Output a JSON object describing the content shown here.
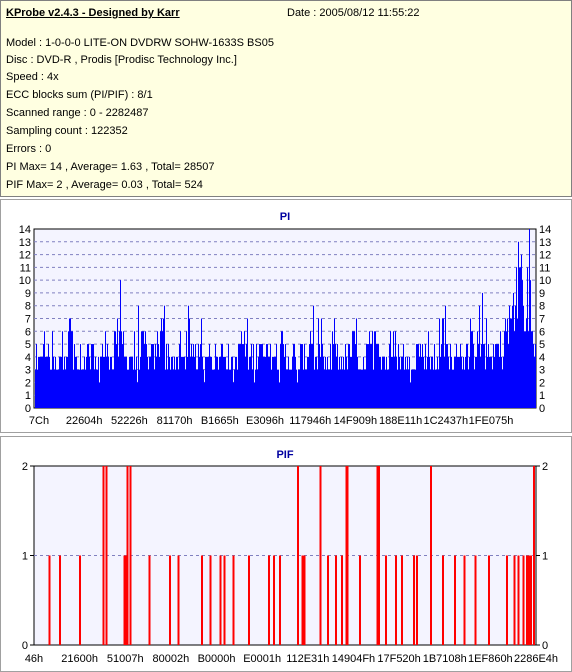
{
  "header": {
    "title": "KProbe v2.4.3 - Designed by Karr",
    "date": "Date : 2005/08/12 11:55:22",
    "lines": [
      "Model : 1-0-0-0 LITE-ON DVDRW SOHW-1633S BS05",
      "Disc : DVD-R , Prodis [Prodisc Technology Inc.]",
      "Speed : 4x",
      "ECC blocks sum (PI/PIF) : 8/1",
      "Scanned range : 0 - 2282487",
      "Sampling count : 122352",
      "Errors : 0",
      "PI Max= 14 , Average= 1.63 , Total= 28507",
      "PIF Max= 2 , Average= 0.03 , Total= 524"
    ]
  },
  "colors": {
    "pi": "#0000ff",
    "pif": "#ff0000",
    "plot_bg": "#f4f4ff",
    "info_bg": "#ffffe1",
    "title": "#0000a0"
  },
  "chart_data": [
    {
      "type": "bar",
      "title": "PI",
      "xlabel": "",
      "ylabel": "",
      "ylim": [
        0,
        14
      ],
      "yticks": [
        0,
        1,
        2,
        3,
        4,
        5,
        6,
        7,
        8,
        9,
        10,
        11,
        12,
        13,
        14
      ],
      "xtick_labels": [
        "7Ch",
        "22604h",
        "52226h",
        "81170h",
        "B1665h",
        "E3096h",
        "117946h",
        "14F909h",
        "188E11h",
        "1C2437h",
        "1FE075h"
      ],
      "grid": true,
      "approx_profile": [
        4,
        6,
        5,
        5,
        4,
        5,
        6,
        8,
        5,
        4,
        4,
        5,
        5,
        4,
        6,
        5,
        5,
        7,
        6,
        5,
        5,
        4,
        6,
        6,
        5,
        5,
        6,
        10,
        5,
        5,
        4,
        5,
        6,
        5,
        5,
        5,
        4,
        6,
        5,
        5,
        6,
        5,
        4,
        5,
        7,
        5,
        5,
        4,
        6,
        5,
        5,
        5,
        4,
        6,
        5,
        5,
        4,
        5,
        5,
        7,
        5,
        5,
        4,
        4,
        6,
        5,
        5,
        5,
        6,
        5,
        4,
        5,
        6,
        8,
        5,
        5,
        5,
        6,
        5,
        5,
        4,
        5,
        6,
        6,
        5,
        5,
        5,
        7,
        6,
        5,
        5,
        6,
        5,
        5,
        6,
        6,
        7,
        5,
        5,
        6,
        6,
        8,
        9,
        11,
        14,
        9,
        10,
        6
      ],
      "peaks": [
        {
          "x_frac": 0.17,
          "value": 10
        },
        {
          "x_frac": 0.986,
          "value": 14
        }
      ]
    },
    {
      "type": "bar",
      "title": "PIF",
      "xlabel": "",
      "ylabel": "",
      "ylim": [
        0,
        2
      ],
      "yticks": [
        0,
        1,
        2
      ],
      "xtick_labels": [
        "46h",
        "21600h",
        "51007h",
        "80002h",
        "B0000h",
        "E0001h",
        "112E31h",
        "14904Fh",
        "17F520h",
        "1B7108h",
        "1EF860h",
        "2286E4h"
      ],
      "grid": true,
      "spikes": [
        {
          "x": 0.027,
          "v": 1
        },
        {
          "x": 0.048,
          "v": 1
        },
        {
          "x": 0.088,
          "v": 1
        },
        {
          "x": 0.135,
          "v": 2
        },
        {
          "x": 0.141,
          "v": 2
        },
        {
          "x": 0.177,
          "v": 1
        },
        {
          "x": 0.181,
          "v": 1
        },
        {
          "x": 0.183,
          "v": 2
        },
        {
          "x": 0.189,
          "v": 2
        },
        {
          "x": 0.227,
          "v": 1
        },
        {
          "x": 0.268,
          "v": 1
        },
        {
          "x": 0.285,
          "v": 1
        },
        {
          "x": 0.332,
          "v": 1
        },
        {
          "x": 0.349,
          "v": 1
        },
        {
          "x": 0.369,
          "v": 1
        },
        {
          "x": 0.377,
          "v": 1
        },
        {
          "x": 0.395,
          "v": 1
        },
        {
          "x": 0.426,
          "v": 1
        },
        {
          "x": 0.466,
          "v": 1
        },
        {
          "x": 0.476,
          "v": 1
        },
        {
          "x": 0.488,
          "v": 1
        },
        {
          "x": 0.524,
          "v": 2
        },
        {
          "x": 0.533,
          "v": 1
        },
        {
          "x": 0.537,
          "v": 1
        },
        {
          "x": 0.569,
          "v": 2
        },
        {
          "x": 0.584,
          "v": 1
        },
        {
          "x": 0.6,
          "v": 1
        },
        {
          "x": 0.612,
          "v": 1
        },
        {
          "x": 0.621,
          "v": 2
        },
        {
          "x": 0.623,
          "v": 2
        },
        {
          "x": 0.648,
          "v": 1
        },
        {
          "x": 0.683,
          "v": 2
        },
        {
          "x": 0.686,
          "v": 2
        },
        {
          "x": 0.7,
          "v": 1
        },
        {
          "x": 0.72,
          "v": 1
        },
        {
          "x": 0.732,
          "v": 1
        },
        {
          "x": 0.756,
          "v": 1
        },
        {
          "x": 0.762,
          "v": 1
        },
        {
          "x": 0.79,
          "v": 2
        },
        {
          "x": 0.814,
          "v": 1
        },
        {
          "x": 0.838,
          "v": 1
        },
        {
          "x": 0.857,
          "v": 1
        },
        {
          "x": 0.879,
          "v": 1
        },
        {
          "x": 0.906,
          "v": 1
        },
        {
          "x": 0.942,
          "v": 1
        },
        {
          "x": 0.957,
          "v": 1
        },
        {
          "x": 0.965,
          "v": 1
        },
        {
          "x": 0.975,
          "v": 1
        },
        {
          "x": 0.982,
          "v": 1
        },
        {
          "x": 0.986,
          "v": 1
        },
        {
          "x": 0.99,
          "v": 1
        },
        {
          "x": 0.996,
          "v": 2
        }
      ]
    }
  ]
}
